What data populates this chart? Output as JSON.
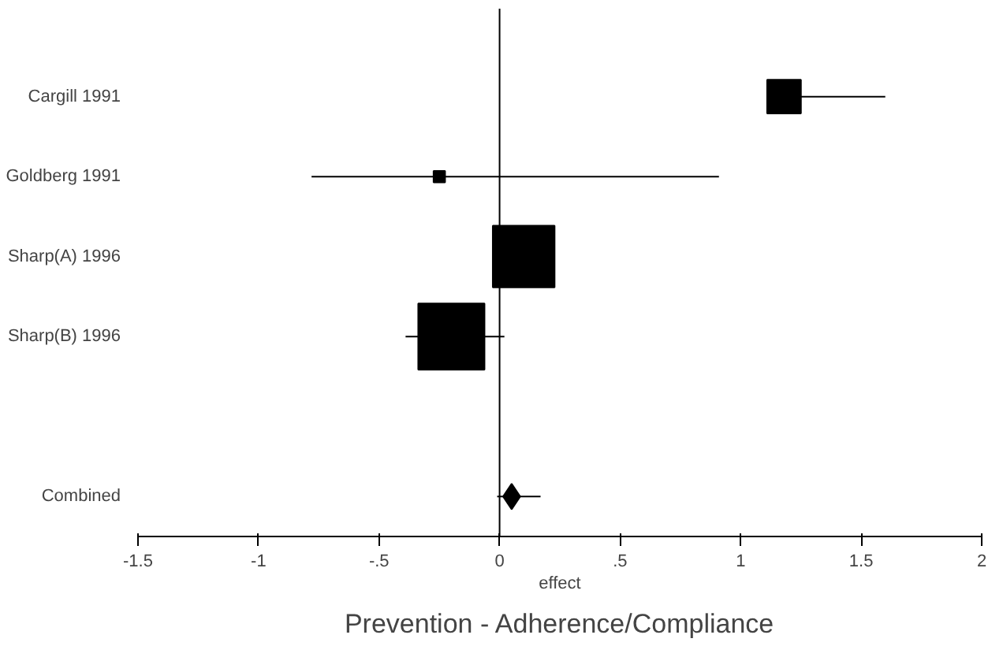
{
  "chart_data": {
    "type": "bubble",
    "orientation": "horizontal",
    "title": "Prevention - Adherence/Compliance",
    "xlabel": "effect",
    "categories": [
      "Cargill 1991",
      "Goldberg 1991",
      "Sharp(A) 1996",
      "Sharp(B) 1996",
      null,
      "Combined"
    ],
    "series": [
      {
        "color": "#000000",
        "marker": "square",
        "values": [
          1.18,
          -0.25,
          0.1,
          -0.2,
          null,
          null
        ],
        "sizes": [
          0.26,
          0.03,
          0.87,
          1,
          null,
          null
        ],
        "errors": [
          [
            1.18,
            1.6
          ],
          [
            -0.78,
            0.91
          ],
          null,
          [
            -0.39,
            0.02
          ],
          null,
          null
        ]
      },
      {
        "color": "#000000",
        "marker": "diamond",
        "values": [
          null,
          null,
          null,
          null,
          null,
          0.05
        ],
        "sizes": [
          null,
          null,
          null,
          null,
          null,
          0.05
        ],
        "errors": [
          null,
          null,
          null,
          null,
          null,
          [
            -0.01,
            0.17
          ]
        ]
      }
    ],
    "xlim": [
      -1.5,
      2
    ],
    "xticks": [
      {
        "value": -1.5,
        "label": "-1.5"
      },
      -1,
      {
        "value": -0.5,
        "label": "-.5"
      },
      0,
      {
        "value": 0.5,
        "label": ".5"
      },
      1,
      1.5,
      2
    ],
    "ref_lines": [
      {
        "axis": "x",
        "value": 0,
        "color": "#000000"
      }
    ],
    "grid": false
  }
}
